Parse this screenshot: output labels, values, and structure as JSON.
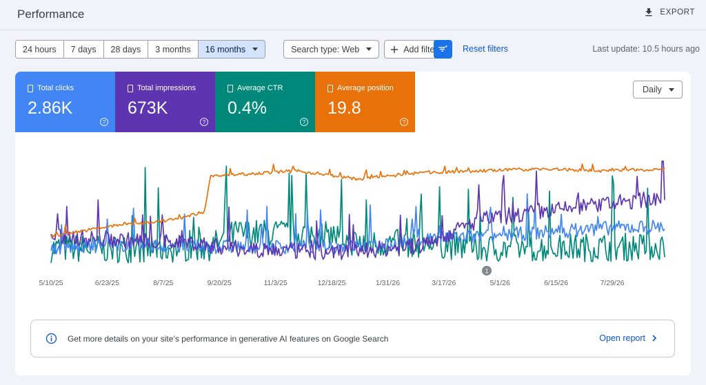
{
  "header": {
    "title": "Performance",
    "export_label": "EXPORT"
  },
  "date_ranges": {
    "items": [
      "24 hours",
      "7 days",
      "28 days",
      "3 months",
      "16 months"
    ],
    "selected": "16 months"
  },
  "filters": {
    "search_type": "Search type: Web",
    "add_filter": "Add filter",
    "reset": "Reset filters",
    "last_update": "Last update: 10.5 hours ago"
  },
  "metrics": [
    {
      "label": "Total clicks",
      "value": "2.86K",
      "color": "#4285f4"
    },
    {
      "label": "Total impressions",
      "value": "673K",
      "color": "#5e35b1"
    },
    {
      "label": "Average CTR",
      "value": "0.4%",
      "color": "#00897b"
    },
    {
      "label": "Average position",
      "value": "19.8",
      "color": "#e8710a"
    }
  ],
  "granularity": "Daily",
  "chart_data": {
    "type": "line",
    "x_ticks": [
      "5/10/25",
      "6/23/25",
      "8/7/25",
      "9/20/25",
      "11/3/25",
      "12/18/25",
      "1/31/26",
      "3/17/26",
      "5/1/26",
      "6/15/26",
      "7/29/26"
    ],
    "annotation": "1",
    "series": [
      {
        "name": "Total clicks",
        "color": "#4285f4",
        "profile": [
          [
            0,
            12
          ],
          [
            0.12,
            16
          ],
          [
            0.22,
            14
          ],
          [
            0.35,
            14
          ],
          [
            0.45,
            14
          ],
          [
            0.55,
            15
          ],
          [
            0.6,
            22
          ],
          [
            0.7,
            24
          ],
          [
            0.8,
            28
          ],
          [
            0.9,
            32
          ],
          [
            1,
            34
          ]
        ],
        "noise": 14
      },
      {
        "name": "Total impressions",
        "color": "#5e35b1",
        "profile": [
          [
            0,
            24
          ],
          [
            0.12,
            20
          ],
          [
            0.22,
            18
          ],
          [
            0.3,
            12
          ],
          [
            0.45,
            8
          ],
          [
            0.6,
            14
          ],
          [
            0.7,
            40
          ],
          [
            0.8,
            48
          ],
          [
            0.9,
            55
          ],
          [
            1,
            62
          ]
        ],
        "noise": 16
      },
      {
        "name": "Average CTR",
        "color": "#00897b",
        "profile": [
          [
            0,
            10
          ],
          [
            0.2,
            10
          ],
          [
            0.26,
            12
          ],
          [
            0.3,
            25
          ],
          [
            0.45,
            25
          ],
          [
            0.5,
            15
          ],
          [
            0.62,
            15
          ],
          [
            0.7,
            10
          ],
          [
            1,
            12
          ]
        ],
        "noise": 28
      },
      {
        "name": "Average position",
        "color": "#e8710a",
        "profile": [
          [
            0,
            26
          ],
          [
            0.1,
            36
          ],
          [
            0.2,
            42
          ],
          [
            0.25,
            50
          ],
          [
            0.26,
            85
          ],
          [
            0.4,
            90
          ],
          [
            0.5,
            82
          ],
          [
            0.6,
            88
          ],
          [
            0.8,
            92
          ],
          [
            0.9,
            90
          ],
          [
            1,
            92
          ]
        ],
        "noise": 3
      }
    ]
  },
  "banner": {
    "text": "Get more details on your site’s performance in generative AI features on Google Search",
    "link": "Open report"
  }
}
